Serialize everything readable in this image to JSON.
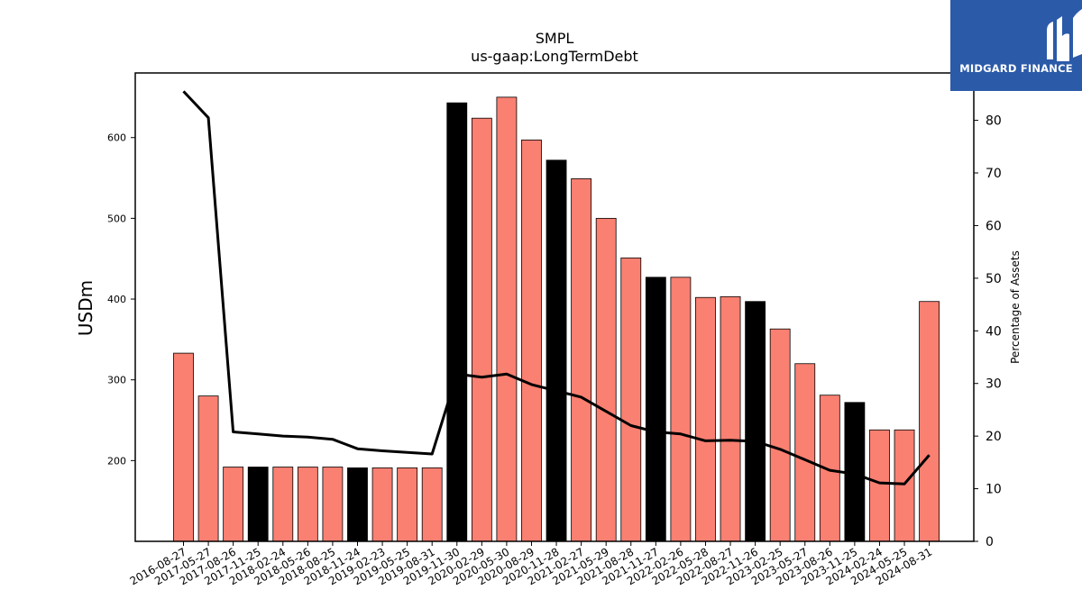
{
  "logo": {
    "text": "MIDGARD FINANCE",
    "background": "#2b5aa8"
  },
  "chart_data": {
    "type": "bar",
    "title": "SMPL",
    "subtitle": "us-gaap:LongTermDebt",
    "ylabel": "USDm",
    "y2label": "Percentage of Assets",
    "ylim": [
      100,
      680
    ],
    "y2lim": [
      0,
      89
    ],
    "yticks": [
      200,
      300,
      400,
      500,
      600
    ],
    "y2ticks": [
      0,
      10,
      20,
      30,
      40,
      50,
      60,
      70,
      80
    ],
    "grid": false,
    "colors": {
      "bar": "#fa8072",
      "highlight": "#000000",
      "line": "#000000"
    },
    "categories": [
      "2016-08-27",
      "2017-05-27",
      "2017-08-26",
      "2017-11-25",
      "2018-02-24",
      "2018-05-26",
      "2018-08-25",
      "2018-11-24",
      "2019-02-23",
      "2019-05-25",
      "2019-08-31",
      "2019-11-30",
      "2020-02-29",
      "2020-05-30",
      "2020-08-29",
      "2020-11-28",
      "2021-02-27",
      "2021-05-29",
      "2021-08-28",
      "2021-11-27",
      "2022-02-26",
      "2022-05-28",
      "2022-08-27",
      "2022-11-26",
      "2023-02-25",
      "2023-05-27",
      "2023-08-26",
      "2023-11-25",
      "2024-02-24",
      "2024-05-25",
      "2024-08-31"
    ],
    "series": [
      {
        "kind": "bar",
        "values": [
          333,
          280,
          192,
          192,
          192,
          192,
          192,
          191,
          191,
          191,
          191,
          643,
          624,
          650,
          597,
          572,
          549,
          500,
          451,
          427,
          427,
          402,
          403,
          397,
          363,
          320,
          281,
          272,
          238,
          238,
          397
        ],
        "highlight": [
          false,
          false,
          false,
          true,
          false,
          false,
          false,
          true,
          false,
          false,
          false,
          true,
          false,
          false,
          false,
          true,
          false,
          false,
          false,
          true,
          false,
          false,
          false,
          true,
          false,
          false,
          false,
          true,
          false,
          false,
          false
        ]
      },
      {
        "kind": "line",
        "axis": "right",
        "values": [
          85.5,
          80.5,
          20.8,
          20.4,
          20.0,
          19.8,
          19.4,
          17.6,
          17.2,
          16.9,
          16.6,
          31.8,
          31.2,
          31.8,
          29.8,
          28.6,
          27.4,
          24.7,
          22.0,
          20.8,
          20.4,
          19.1,
          19.2,
          19.0,
          17.5,
          15.5,
          13.5,
          12.8,
          11.1,
          10.9,
          16.4
        ]
      }
    ]
  }
}
